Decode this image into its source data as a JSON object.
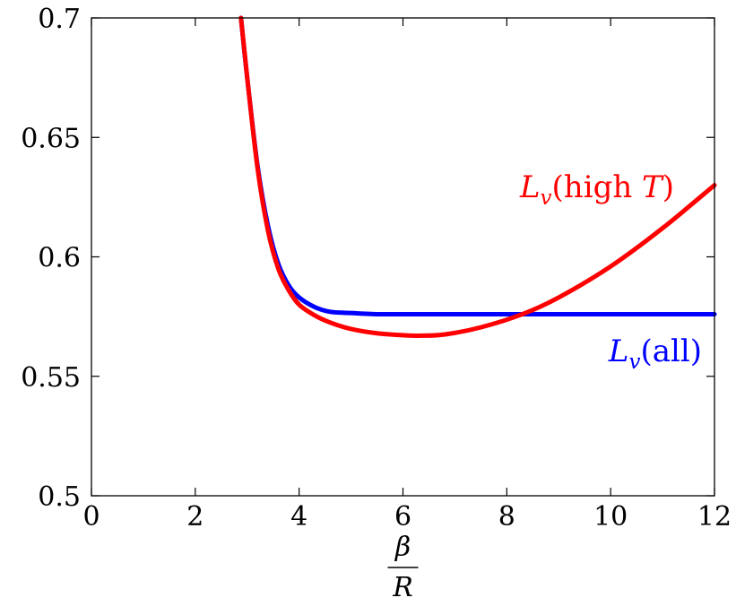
{
  "chart_data": {
    "type": "line",
    "xlabel": {
      "numerator": "β",
      "denominator": "R"
    },
    "ylabel": "",
    "xlim": [
      0,
      12
    ],
    "ylim": [
      0.5,
      0.7
    ],
    "xticks": [
      "0",
      "2",
      "4",
      "6",
      "8",
      "10",
      "12"
    ],
    "yticks": [
      "0.5",
      "0.55",
      "0.6",
      "0.65",
      "0.7"
    ],
    "grid": false,
    "series": [
      {
        "name": "L_v(all)",
        "label_parts": {
          "symbol": "L",
          "subscript": "v",
          "text": "(all)"
        },
        "color": "#0000ff",
        "x": [
          2.88,
          3.0,
          3.2,
          3.4,
          3.6,
          3.8,
          4.0,
          4.3,
          4.6,
          5.0,
          5.5,
          6.0,
          7.0,
          8.0,
          10.0,
          12.0
        ],
        "y": [
          0.7,
          0.675,
          0.638,
          0.613,
          0.597,
          0.588,
          0.583,
          0.579,
          0.577,
          0.5765,
          0.576,
          0.576,
          0.576,
          0.576,
          0.576,
          0.576
        ]
      },
      {
        "name": "L_v(high T)",
        "label_parts": {
          "symbol": "L",
          "subscript": "v",
          "text_before": "(high ",
          "italic": "T",
          "text_after": ")"
        },
        "color": "#ff0000",
        "x": [
          2.88,
          3.0,
          3.2,
          3.4,
          3.6,
          3.8,
          4.0,
          4.3,
          4.6,
          5.0,
          5.5,
          6.0,
          6.3,
          6.8,
          7.5,
          8.3,
          9.0,
          10.0,
          11.0,
          12.0
        ],
        "y": [
          0.7,
          0.675,
          0.637,
          0.611,
          0.595,
          0.586,
          0.58,
          0.5755,
          0.5725,
          0.5698,
          0.568,
          0.5672,
          0.567,
          0.5675,
          0.5705,
          0.576,
          0.583,
          0.596,
          0.612,
          0.63
        ]
      }
    ]
  }
}
